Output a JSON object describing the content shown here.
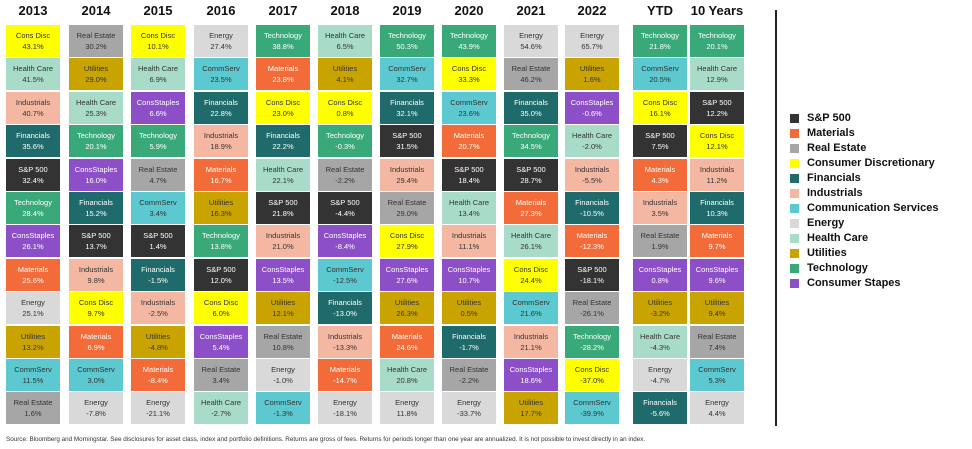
{
  "columns": [
    {
      "heading": "2013",
      "cells": [
        {
          "sector": "Cons Disc",
          "value": "43.1%"
        },
        {
          "sector": "Health Care",
          "value": "41.5%"
        },
        {
          "sector": "Industrials",
          "value": "40.7%"
        },
        {
          "sector": "Financials",
          "value": "35.6%"
        },
        {
          "sector": "S&P 500",
          "value": "32.4%"
        },
        {
          "sector": "Technology",
          "value": "28.4%"
        },
        {
          "sector": "ConsStaples",
          "value": "26.1%"
        },
        {
          "sector": "Materials",
          "value": "25.6%"
        },
        {
          "sector": "Energy",
          "value": "25.1%"
        },
        {
          "sector": "Utilities",
          "value": "13.2%"
        },
        {
          "sector": "CommServ",
          "value": "11.5%"
        },
        {
          "sector": "Real Estate",
          "value": "1.6%"
        }
      ]
    },
    {
      "heading": "2014",
      "cells": [
        {
          "sector": "Real Estate",
          "value": "30.2%"
        },
        {
          "sector": "Utilities",
          "value": "29.0%"
        },
        {
          "sector": "Health Care",
          "value": "25.3%"
        },
        {
          "sector": "Technology",
          "value": "20.1%"
        },
        {
          "sector": "ConsStaples",
          "value": "16.0%"
        },
        {
          "sector": "Financials",
          "value": "15.2%"
        },
        {
          "sector": "S&P 500",
          "value": "13.7%"
        },
        {
          "sector": "Industrials",
          "value": "9.8%"
        },
        {
          "sector": "Cons Disc",
          "value": "9.7%"
        },
        {
          "sector": "Materials",
          "value": "6.9%"
        },
        {
          "sector": "CommServ",
          "value": "3.0%"
        },
        {
          "sector": "Energy",
          "value": "-7.8%"
        }
      ]
    },
    {
      "heading": "2015",
      "cells": [
        {
          "sector": "Cons Disc",
          "value": "10.1%"
        },
        {
          "sector": "Health Care",
          "value": "6.9%"
        },
        {
          "sector": "ConsStaples",
          "value": "6.6%"
        },
        {
          "sector": "Technology",
          "value": "5.9%"
        },
        {
          "sector": "Real Estate",
          "value": "4.7%"
        },
        {
          "sector": "CommServ",
          "value": "3.4%"
        },
        {
          "sector": "S&P 500",
          "value": "1.4%"
        },
        {
          "sector": "Financials",
          "value": "-1.5%"
        },
        {
          "sector": "Industrials",
          "value": "-2.5%"
        },
        {
          "sector": "Utilities",
          "value": "-4.8%"
        },
        {
          "sector": "Materials",
          "value": "-8.4%"
        },
        {
          "sector": "Energy",
          "value": "-21.1%"
        }
      ]
    },
    {
      "heading": "2016",
      "cells": [
        {
          "sector": "Energy",
          "value": "27.4%"
        },
        {
          "sector": "CommServ",
          "value": "23.5%"
        },
        {
          "sector": "Financials",
          "value": "22.8%"
        },
        {
          "sector": "Industrials",
          "value": "18.9%"
        },
        {
          "sector": "Materials",
          "value": "16.7%"
        },
        {
          "sector": "Utilities",
          "value": "16.3%"
        },
        {
          "sector": "Technology",
          "value": "13.8%"
        },
        {
          "sector": "S&P 500",
          "value": "12.0%"
        },
        {
          "sector": "Cons Disc",
          "value": "6.0%"
        },
        {
          "sector": "ConsStaples",
          "value": "5.4%"
        },
        {
          "sector": "Real Estate",
          "value": "3.4%"
        },
        {
          "sector": "Health Care",
          "value": "-2.7%"
        }
      ]
    },
    {
      "heading": "2017",
      "cells": [
        {
          "sector": "Technology",
          "value": "38.8%"
        },
        {
          "sector": "Materials",
          "value": "23.8%"
        },
        {
          "sector": "Cons Disc",
          "value": "23.0%"
        },
        {
          "sector": "Financials",
          "value": "22.2%"
        },
        {
          "sector": "Health Care",
          "value": "22.1%"
        },
        {
          "sector": "S&P 500",
          "value": "21.8%"
        },
        {
          "sector": "Industrials",
          "value": "21.0%"
        },
        {
          "sector": "ConsStaples",
          "value": "13.5%"
        },
        {
          "sector": "Utilities",
          "value": "12.1%"
        },
        {
          "sector": "Real Estate",
          "value": "10.8%"
        },
        {
          "sector": "Energy",
          "value": "-1.0%"
        },
        {
          "sector": "CommServ",
          "value": "-1.3%"
        }
      ]
    },
    {
      "heading": "2018",
      "cells": [
        {
          "sector": "Health Care",
          "value": "6.5%"
        },
        {
          "sector": "Utilities",
          "value": "4.1%"
        },
        {
          "sector": "Cons Disc",
          "value": "0.8%"
        },
        {
          "sector": "Technology",
          "value": "-0.3%"
        },
        {
          "sector": "Real Estate",
          "value": "-2.2%"
        },
        {
          "sector": "S&P 500",
          "value": "-4.4%"
        },
        {
          "sector": "ConsStaples",
          "value": "-8.4%"
        },
        {
          "sector": "CommServ",
          "value": "-12.5%"
        },
        {
          "sector": "Financials",
          "value": "-13.0%"
        },
        {
          "sector": "Industrials",
          "value": "-13.3%"
        },
        {
          "sector": "Materials",
          "value": "-14.7%"
        },
        {
          "sector": "Energy",
          "value": "-18.1%"
        }
      ]
    },
    {
      "heading": "2019",
      "cells": [
        {
          "sector": "Technology",
          "value": "50.3%"
        },
        {
          "sector": "CommServ",
          "value": "32.7%"
        },
        {
          "sector": "Financials",
          "value": "32.1%"
        },
        {
          "sector": "S&P 500",
          "value": "31.5%"
        },
        {
          "sector": "Industrials",
          "value": "29.4%"
        },
        {
          "sector": "Real Estate",
          "value": "29.0%"
        },
        {
          "sector": "Cons Disc",
          "value": "27.9%"
        },
        {
          "sector": "ConsStaples",
          "value": "27.6%"
        },
        {
          "sector": "Utilities",
          "value": "26.3%"
        },
        {
          "sector": "Materials",
          "value": "24.6%"
        },
        {
          "sector": "Health Care",
          "value": "20.8%"
        },
        {
          "sector": "Energy",
          "value": "11.8%"
        }
      ]
    },
    {
      "heading": "2020",
      "cells": [
        {
          "sector": "Technology",
          "value": "43.9%"
        },
        {
          "sector": "Cons Disc",
          "value": "33.3%"
        },
        {
          "sector": "CommServ",
          "value": "23.6%"
        },
        {
          "sector": "Materials",
          "value": "20.7%"
        },
        {
          "sector": "S&P 500",
          "value": "18.4%"
        },
        {
          "sector": "Health Care",
          "value": "13.4%"
        },
        {
          "sector": "Industrials",
          "value": "11.1%"
        },
        {
          "sector": "ConsStaples",
          "value": "10.7%"
        },
        {
          "sector": "Utilities",
          "value": "0.5%"
        },
        {
          "sector": "Financials",
          "value": "-1.7%"
        },
        {
          "sector": "Real Estate",
          "value": "-2.2%"
        },
        {
          "sector": "Energy",
          "value": "-33.7%"
        }
      ]
    },
    {
      "heading": "2021",
      "cells": [
        {
          "sector": "Energy",
          "value": "54.6%"
        },
        {
          "sector": "Real Estate",
          "value": "46.2%"
        },
        {
          "sector": "Financials",
          "value": "35.0%"
        },
        {
          "sector": "Technology",
          "value": "34.5%"
        },
        {
          "sector": "S&P 500",
          "value": "28.7%"
        },
        {
          "sector": "Materials",
          "value": "27.3%"
        },
        {
          "sector": "Health Care",
          "value": "26.1%"
        },
        {
          "sector": "Cons Disc",
          "value": "24.4%"
        },
        {
          "sector": "CommServ",
          "value": "21.6%"
        },
        {
          "sector": "Industrials",
          "value": "21.1%"
        },
        {
          "sector": "ConsStaples",
          "value": "18.6%"
        },
        {
          "sector": "Utilities",
          "value": "17.7%"
        }
      ]
    },
    {
      "heading": "2022",
      "cells": [
        {
          "sector": "Energy",
          "value": "65.7%"
        },
        {
          "sector": "Utilities",
          "value": "1.6%"
        },
        {
          "sector": "ConsStaples",
          "value": "-0.6%"
        },
        {
          "sector": "Health Care",
          "value": "-2.0%"
        },
        {
          "sector": "Industrials",
          "value": "-5.5%"
        },
        {
          "sector": "Financials",
          "value": "-10.5%"
        },
        {
          "sector": "Materials",
          "value": "-12.3%"
        },
        {
          "sector": "S&P 500",
          "value": "-18.1%"
        },
        {
          "sector": "Real Estate",
          "value": "-26.1%"
        },
        {
          "sector": "Technology",
          "value": "-28.2%"
        },
        {
          "sector": "Cons Disc",
          "value": "-37.0%"
        },
        {
          "sector": "CommServ",
          "value": "-39.9%"
        }
      ]
    },
    {
      "heading": "YTD",
      "cells": [
        {
          "sector": "Technology",
          "value": "21.8%"
        },
        {
          "sector": "CommServ",
          "value": "20.5%"
        },
        {
          "sector": "Cons Disc",
          "value": "16.1%"
        },
        {
          "sector": "S&P 500",
          "value": "7.5%"
        },
        {
          "sector": "Materials",
          "value": "4.3%"
        },
        {
          "sector": "Industrials",
          "value": "3.5%"
        },
        {
          "sector": "Real Estate",
          "value": "1.9%"
        },
        {
          "sector": "ConsStaples",
          "value": "0.8%"
        },
        {
          "sector": "Utilities",
          "value": "-3.2%"
        },
        {
          "sector": "Health Care",
          "value": "-4.3%"
        },
        {
          "sector": "Energy",
          "value": "-4.7%"
        },
        {
          "sector": "Financials",
          "value": "-5.6%"
        }
      ]
    },
    {
      "heading": "10 Years",
      "cells": [
        {
          "sector": "Technology",
          "value": "20.1%"
        },
        {
          "sector": "Health Care",
          "value": "12.9%"
        },
        {
          "sector": "S&P 500",
          "value": "12.2%"
        },
        {
          "sector": "Cons Disc",
          "value": "12.1%"
        },
        {
          "sector": "Industrials",
          "value": "11.2%"
        },
        {
          "sector": "Financials",
          "value": "10.3%"
        },
        {
          "sector": "Materials",
          "value": "9.7%"
        },
        {
          "sector": "ConsStaples",
          "value": "9.6%"
        },
        {
          "sector": "Utilities",
          "value": "9.4%"
        },
        {
          "sector": "Real Estate",
          "value": "7.4%"
        },
        {
          "sector": "CommServ",
          "value": "5.3%"
        },
        {
          "sector": "Energy",
          "value": "4.4%"
        }
      ]
    }
  ],
  "sector_colors": {
    "S&P 500": "#333333",
    "Materials": "#f26b38",
    "Real Estate": "#a6a6a6",
    "Cons Disc": "#ffff00",
    "Financials": "#1f6b6b",
    "Industrials": "#f4b8a2",
    "CommServ": "#5cc8cf",
    "Energy": "#d9d9d9",
    "Health Care": "#a8dcc8",
    "Utilities": "#c9a400",
    "Technology": "#3aa97a",
    "ConsStaples": "#8c4fc8"
  },
  "legend": [
    {
      "name": "S&P 500",
      "color": "#333333"
    },
    {
      "name": "Materials",
      "color": "#f26b38"
    },
    {
      "name": "Real Estate",
      "color": "#a6a6a6"
    },
    {
      "name": "Consumer Discretionary",
      "color": "#ffff00"
    },
    {
      "name": "Financials",
      "color": "#1f6b6b"
    },
    {
      "name": "Industrials",
      "color": "#f4b8a2"
    },
    {
      "name": "Communication Services",
      "color": "#5cc8cf"
    },
    {
      "name": "Energy",
      "color": "#d9d9d9"
    },
    {
      "name": "Health Care",
      "color": "#a8dcc8"
    },
    {
      "name": "Utilities",
      "color": "#c9a400"
    },
    {
      "name": "Technology",
      "color": "#3aa97a"
    },
    {
      "name": "Consumer Stapes",
      "color": "#8c4fc8"
    }
  ],
  "source": "Source: Bloomberg and Morningstar. See disclosures for asset class, index and portfolio definitions. Returns are gross of fees. Returns for periods longer than one year are annualized. It is not possible to invest directly in an index."
}
